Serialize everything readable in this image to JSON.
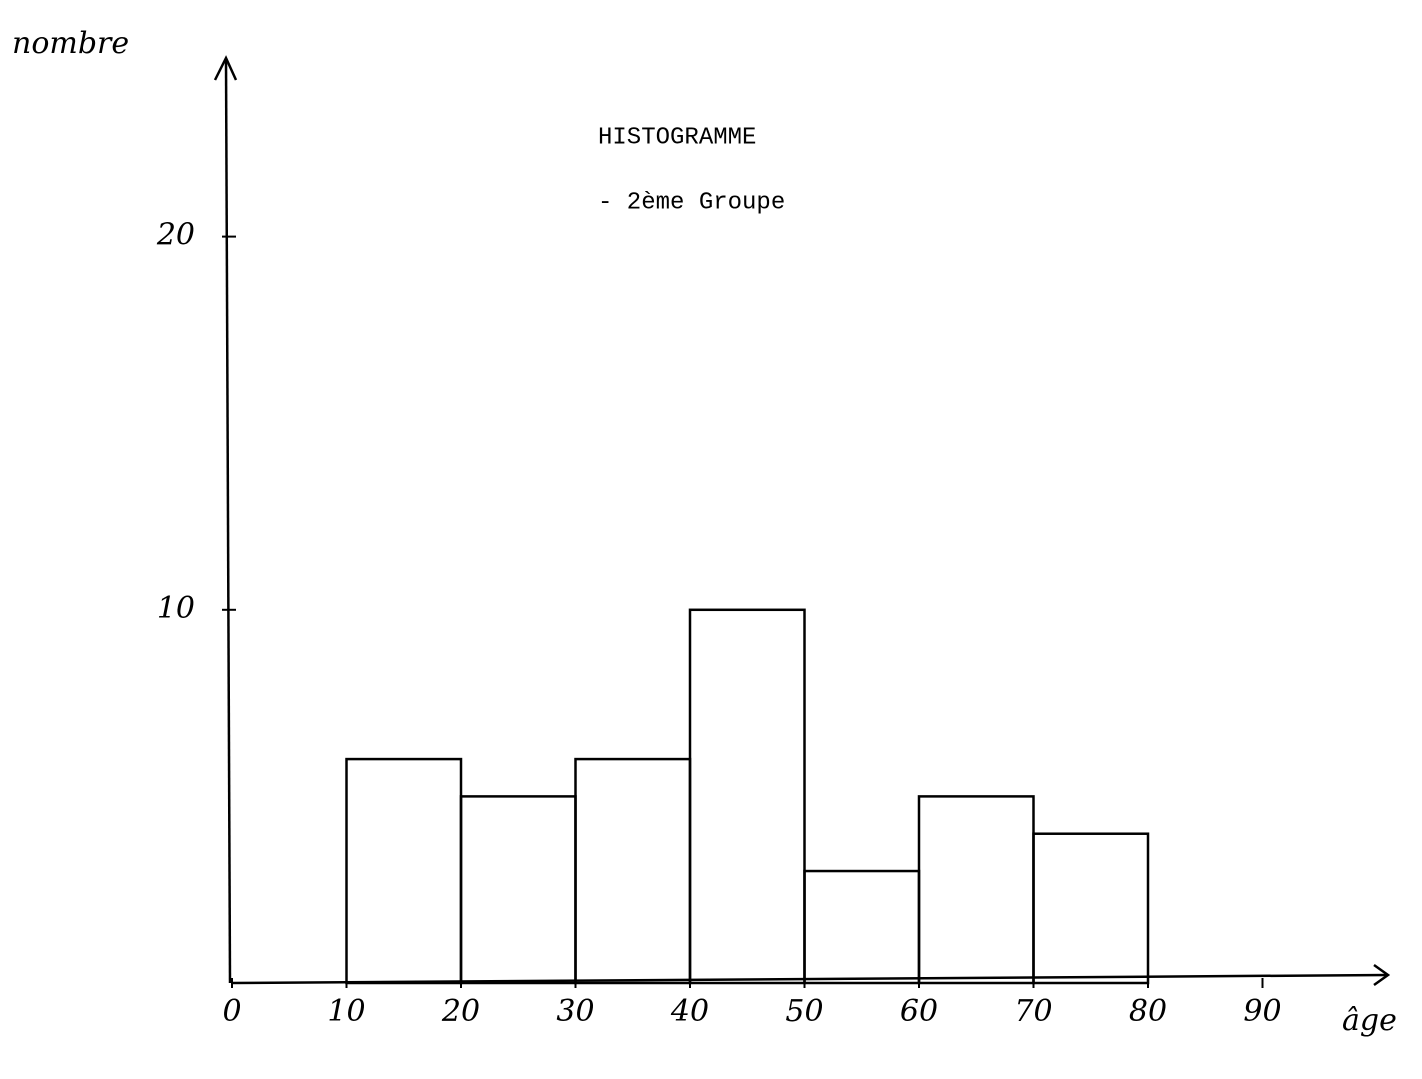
{
  "chart_data": {
    "type": "histogram",
    "title": "HISTOGRAMME",
    "subtitle": "- 2ème Groupe",
    "x_label": "âge",
    "y_label": "nombre",
    "bins": [
      10,
      20,
      30,
      40,
      50,
      60,
      70,
      80
    ],
    "counts": [
      6,
      5,
      6,
      10,
      3,
      5,
      4
    ],
    "xlim": [
      0,
      100
    ],
    "xticks": [
      0,
      10,
      20,
      30,
      40,
      50,
      60,
      70,
      80,
      90
    ],
    "ylim": [
      0,
      25
    ],
    "yticks": [
      10,
      20
    ],
    "color": "#000000"
  }
}
